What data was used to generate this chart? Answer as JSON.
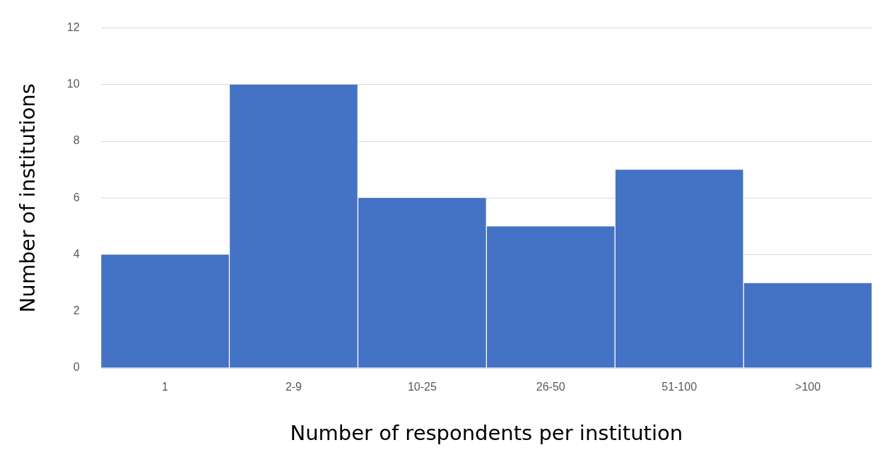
{
  "chart_data": {
    "type": "bar",
    "xlabel": "Number of respondents per institution",
    "ylabel": "Number of institutions",
    "categories": [
      "1",
      "2-9",
      "10-25",
      "26-50",
      "51-100",
      ">100"
    ],
    "values": [
      4,
      10,
      6,
      5,
      7,
      3
    ],
    "color": "#4472c4",
    "ylim": [
      0,
      12
    ],
    "yticks": [
      0,
      2,
      4,
      6,
      8,
      10,
      12
    ],
    "grid": "y",
    "legend": false
  }
}
